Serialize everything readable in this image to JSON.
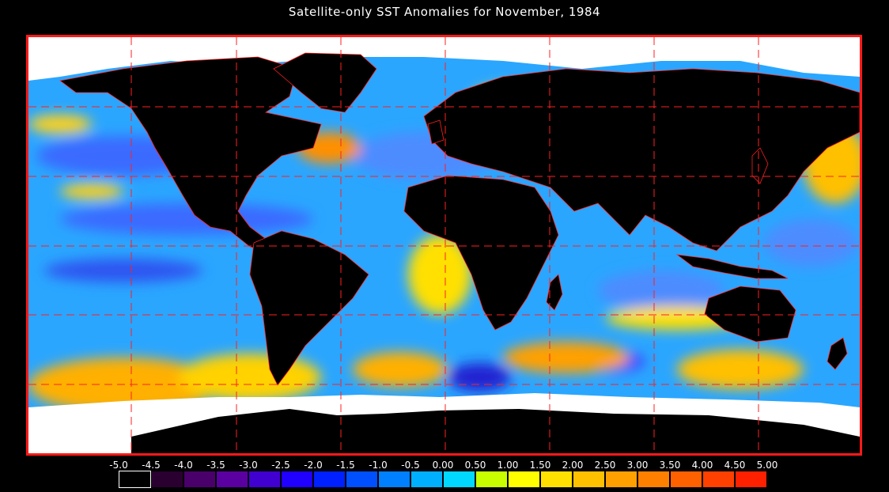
{
  "title": "Satellite-only SST Anomalies for November, 1984",
  "colors": {
    "frame": "#ff1a1a",
    "land": "#000000",
    "ice": "#ffffff",
    "borders": "#ff2020",
    "grid": "#ff2020"
  },
  "legend": {
    "tick_labels": [
      "-5.0",
      "-4.5",
      "-4.0",
      "-3.5",
      "-3.0",
      "-2.5",
      "-2.0",
      "-1.5",
      "-1.0",
      "-0.5",
      "0.00",
      "0.50",
      "1.00",
      "1.50",
      "2.00",
      "2.50",
      "3.00",
      "3.50",
      "4.00",
      "4.50",
      "5.00"
    ],
    "bin_colors": [
      "#000000",
      "#2a0030",
      "#4a006a",
      "#5a00a0",
      "#4000d0",
      "#2000ff",
      "#0020ff",
      "#0050ff",
      "#0080ff",
      "#00b0ff",
      "#00d8ff",
      "#c8ff00",
      "#ffff00",
      "#ffe000",
      "#ffc000",
      "#ffa000",
      "#ff8000",
      "#ff6000",
      "#ff4000",
      "#ff2000"
    ]
  }
}
